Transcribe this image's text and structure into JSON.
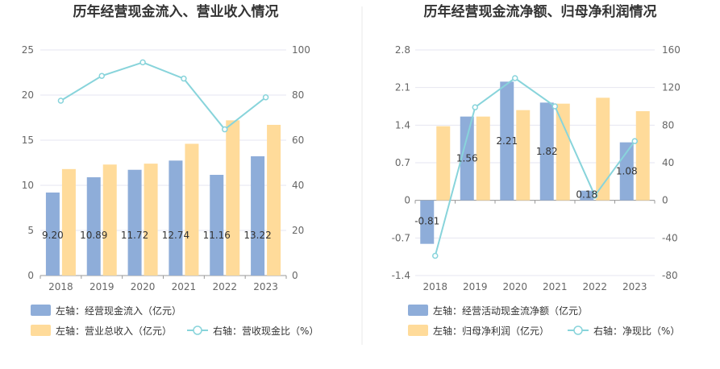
{
  "colors": {
    "bar_primary": "#8eadd9",
    "bar_secondary": "#ffdb9a",
    "line": "#88d4db",
    "grid": "#e6e6f0",
    "divider": "#e8e8e8",
    "axis_text": "#666666"
  },
  "chart_data": [
    {
      "type": "bar",
      "title": "历年经营现金流入、营业收入情况",
      "categories": [
        "2018",
        "2019",
        "2020",
        "2021",
        "2022",
        "2023"
      ],
      "y_left": {
        "min": 0,
        "max": 25,
        "ticks": [
          "0",
          "5",
          "10",
          "15",
          "20",
          "25"
        ]
      },
      "y_right": {
        "min": 0,
        "max": 100,
        "ticks": [
          "0",
          "20",
          "40",
          "60",
          "80",
          "100"
        ]
      },
      "series": [
        {
          "name": "经营现金流入",
          "axis": "left",
          "kind": "bar",
          "values": [
            9.2,
            10.89,
            11.72,
            12.74,
            11.16,
            13.22
          ],
          "labels": [
            "9.20",
            "10.89",
            "11.72",
            "12.74",
            "11.16",
            "13.22"
          ]
        },
        {
          "name": "营业总收入",
          "axis": "left",
          "kind": "bar",
          "values": [
            11.8,
            12.3,
            12.4,
            14.6,
            17.2,
            16.7
          ]
        },
        {
          "name": "营收现金比",
          "axis": "right",
          "kind": "line",
          "values": [
            77.5,
            88.5,
            94.5,
            87.3,
            64.8,
            79.0
          ]
        }
      ],
      "legend": [
        {
          "text": "左轴：经营现金流入（亿元）",
          "kind": "bar",
          "series": 0
        },
        {
          "text": "左轴：营业总收入（亿元）",
          "kind": "bar",
          "series": 1
        },
        {
          "text": "右轴：营收现金比（%）",
          "kind": "line",
          "series": 2
        }
      ]
    },
    {
      "type": "bar",
      "title": "历年经营现金流净额、归母净利润情况",
      "categories": [
        "2018",
        "2019",
        "2020",
        "2021",
        "2022",
        "2023"
      ],
      "y_left": {
        "min": -1.4,
        "max": 2.8,
        "ticks": [
          "-1.4",
          "-0.7",
          "0",
          "0.7",
          "1.4",
          "2.1",
          "2.8"
        ]
      },
      "y_right": {
        "min": -80,
        "max": 160,
        "ticks": [
          "-80",
          "-40",
          "0",
          "40",
          "80",
          "120",
          "160"
        ]
      },
      "series": [
        {
          "name": "经营活动现金流净额",
          "axis": "left",
          "kind": "bar",
          "values": [
            -0.81,
            1.56,
            2.21,
            1.82,
            0.18,
            1.08
          ],
          "labels": [
            "-0.81",
            "1.56",
            "2.21",
            "1.82",
            "0.18",
            "1.08"
          ]
        },
        {
          "name": "归母净利润",
          "axis": "left",
          "kind": "bar",
          "values": [
            1.38,
            1.56,
            1.68,
            1.8,
            1.91,
            1.66
          ]
        },
        {
          "name": "净现比",
          "axis": "right",
          "kind": "line",
          "values": [
            -59,
            99,
            130,
            100,
            5,
            63
          ]
        }
      ],
      "legend": [
        {
          "text": "左轴：经营活动现金流净额（亿元）",
          "kind": "bar",
          "series": 0
        },
        {
          "text": "左轴：归母净利润（亿元）",
          "kind": "bar",
          "series": 1
        },
        {
          "text": "右轴：净现比（%）",
          "kind": "line",
          "series": 2
        }
      ]
    }
  ]
}
